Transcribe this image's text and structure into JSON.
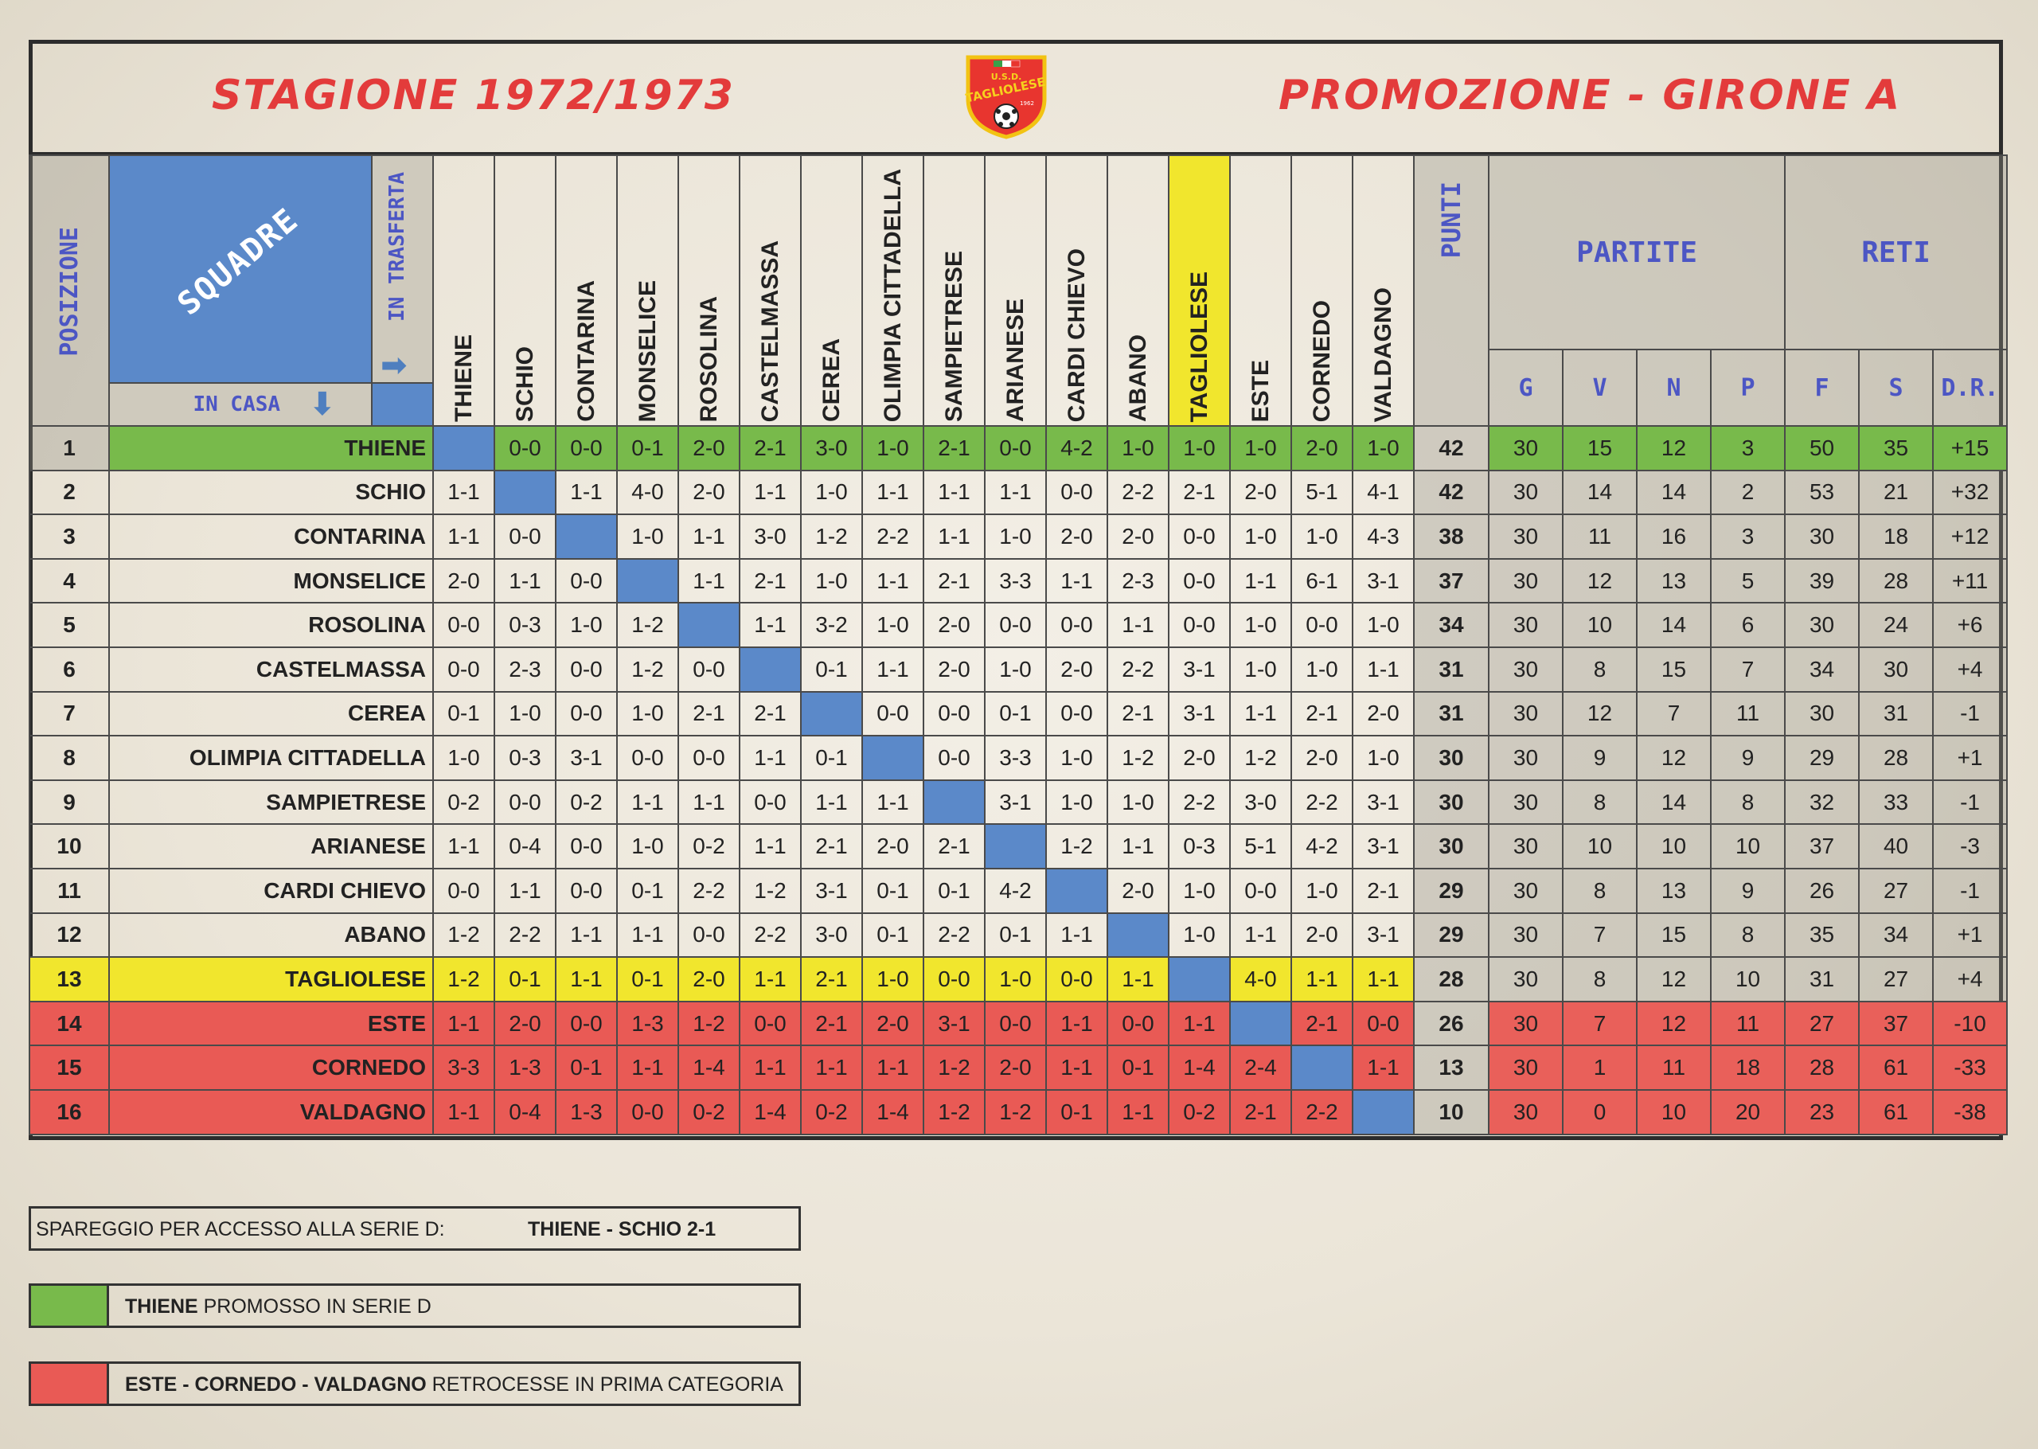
{
  "header": {
    "season": "STAGIONE 1972/1973",
    "league": "PROMOZIONE - GIRONE A",
    "logo_text": "U.S.D. TAGLIOLESE",
    "logo_year": "1962"
  },
  "labels": {
    "posizione": "POSIZIONE",
    "squadre": "SQUADRE",
    "in_casa": "IN CASA",
    "in_trasferta": "IN TRASFERTA",
    "punti": "PUNTI",
    "partite": "PARTITE",
    "reti": "RETI",
    "g": "G",
    "v": "V",
    "n": "N",
    "p": "P",
    "f": "F",
    "s": "S",
    "dr": "D.R."
  },
  "columns": [
    "THIENE",
    "SCHIO",
    "CONTARINA",
    "MONSELICE",
    "ROSOLINA",
    "CASTELMASSA",
    "CEREA",
    "OLIMPIA CITTADELLA",
    "SAMPIETRESE",
    "ARIANESE",
    "CARDI CHIEVO",
    "ABANO",
    "TAGLIOLESE",
    "ESTE",
    "CORNEDO",
    "VALDAGNO"
  ],
  "rows": [
    {
      "pos": "1",
      "team": "THIENE",
      "res": [
        "",
        "0-0",
        "0-0",
        "0-1",
        "2-0",
        "2-1",
        "3-0",
        "1-0",
        "2-1",
        "0-0",
        "4-2",
        "1-0",
        "1-0",
        "1-0",
        "2-0",
        "1-0"
      ],
      "pts": "42",
      "g": "30",
      "v": "15",
      "n": "12",
      "p": "3",
      "f": "50",
      "s": "35",
      "dr": "+15"
    },
    {
      "pos": "2",
      "team": "SCHIO",
      "res": [
        "1-1",
        "",
        "1-1",
        "4-0",
        "2-0",
        "1-1",
        "1-0",
        "1-1",
        "1-1",
        "1-1",
        "0-0",
        "2-2",
        "2-1",
        "2-0",
        "5-1",
        "4-1"
      ],
      "pts": "42",
      "g": "30",
      "v": "14",
      "n": "14",
      "p": "2",
      "f": "53",
      "s": "21",
      "dr": "+32"
    },
    {
      "pos": "3",
      "team": "CONTARINA",
      "res": [
        "1-1",
        "0-0",
        "",
        "1-0",
        "1-1",
        "3-0",
        "1-2",
        "2-2",
        "1-1",
        "1-0",
        "2-0",
        "2-0",
        "0-0",
        "1-0",
        "1-0",
        "4-3"
      ],
      "pts": "38",
      "g": "30",
      "v": "11",
      "n": "16",
      "p": "3",
      "f": "30",
      "s": "18",
      "dr": "+12"
    },
    {
      "pos": "4",
      "team": "MONSELICE",
      "res": [
        "2-0",
        "1-1",
        "0-0",
        "",
        "1-1",
        "2-1",
        "1-0",
        "1-1",
        "2-1",
        "3-3",
        "1-1",
        "2-3",
        "0-0",
        "1-1",
        "6-1",
        "3-1"
      ],
      "pts": "37",
      "g": "30",
      "v": "12",
      "n": "13",
      "p": "5",
      "f": "39",
      "s": "28",
      "dr": "+11"
    },
    {
      "pos": "5",
      "team": "ROSOLINA",
      "res": [
        "0-0",
        "0-3",
        "1-0",
        "1-2",
        "",
        "1-1",
        "3-2",
        "1-0",
        "2-0",
        "0-0",
        "0-0",
        "1-1",
        "0-0",
        "1-0",
        "0-0",
        "1-0"
      ],
      "pts": "34",
      "g": "30",
      "v": "10",
      "n": "14",
      "p": "6",
      "f": "30",
      "s": "24",
      "dr": "+6"
    },
    {
      "pos": "6",
      "team": "CASTELMASSA",
      "res": [
        "0-0",
        "2-3",
        "0-0",
        "1-2",
        "0-0",
        "",
        "0-1",
        "1-1",
        "2-0",
        "1-0",
        "2-0",
        "2-2",
        "3-1",
        "1-0",
        "1-0",
        "1-1"
      ],
      "pts": "31",
      "g": "30",
      "v": "8",
      "n": "15",
      "p": "7",
      "f": "34",
      "s": "30",
      "dr": "+4"
    },
    {
      "pos": "7",
      "team": "CEREA",
      "res": [
        "0-1",
        "1-0",
        "0-0",
        "1-0",
        "2-1",
        "2-1",
        "",
        "0-0",
        "0-0",
        "0-1",
        "0-0",
        "2-1",
        "3-1",
        "1-1",
        "2-1",
        "2-0"
      ],
      "pts": "31",
      "g": "30",
      "v": "12",
      "n": "7",
      "p": "11",
      "f": "30",
      "s": "31",
      "dr": "-1"
    },
    {
      "pos": "8",
      "team": "OLIMPIA CITTADELLA",
      "res": [
        "1-0",
        "0-3",
        "3-1",
        "0-0",
        "0-0",
        "1-1",
        "0-1",
        "",
        "0-0",
        "3-3",
        "1-0",
        "1-2",
        "2-0",
        "1-2",
        "2-0",
        "1-0"
      ],
      "pts": "30",
      "g": "30",
      "v": "9",
      "n": "12",
      "p": "9",
      "f": "29",
      "s": "28",
      "dr": "+1"
    },
    {
      "pos": "9",
      "team": "SAMPIETRESE",
      "res": [
        "0-2",
        "0-0",
        "0-2",
        "1-1",
        "1-1",
        "0-0",
        "1-1",
        "1-1",
        "",
        "3-1",
        "1-0",
        "1-0",
        "2-2",
        "3-0",
        "2-2",
        "3-1"
      ],
      "pts": "30",
      "g": "30",
      "v": "8",
      "n": "14",
      "p": "8",
      "f": "32",
      "s": "33",
      "dr": "-1"
    },
    {
      "pos": "10",
      "team": "ARIANESE",
      "res": [
        "1-1",
        "0-4",
        "0-0",
        "1-0",
        "0-2",
        "1-1",
        "2-1",
        "2-0",
        "2-1",
        "",
        "1-2",
        "1-1",
        "0-3",
        "5-1",
        "4-2",
        "3-1"
      ],
      "pts": "30",
      "g": "30",
      "v": "10",
      "n": "10",
      "p": "10",
      "f": "37",
      "s": "40",
      "dr": "-3"
    },
    {
      "pos": "11",
      "team": "CARDI CHIEVO",
      "res": [
        "0-0",
        "1-1",
        "0-0",
        "0-1",
        "2-2",
        "1-2",
        "3-1",
        "0-1",
        "0-1",
        "4-2",
        "",
        "2-0",
        "1-0",
        "0-0",
        "1-0",
        "2-1"
      ],
      "pts": "29",
      "g": "30",
      "v": "8",
      "n": "13",
      "p": "9",
      "f": "26",
      "s": "27",
      "dr": "-1"
    },
    {
      "pos": "12",
      "team": "ABANO",
      "res": [
        "1-2",
        "2-2",
        "1-1",
        "1-1",
        "0-0",
        "2-2",
        "3-0",
        "0-1",
        "2-2",
        "0-1",
        "1-1",
        "",
        "1-0",
        "1-1",
        "2-0",
        "3-1"
      ],
      "pts": "29",
      "g": "30",
      "v": "7",
      "n": "15",
      "p": "8",
      "f": "35",
      "s": "34",
      "dr": "+1"
    },
    {
      "pos": "13",
      "team": "TAGLIOLESE",
      "res": [
        "1-2",
        "0-1",
        "1-1",
        "0-1",
        "2-0",
        "1-1",
        "2-1",
        "1-0",
        "0-0",
        "1-0",
        "0-0",
        "1-1",
        "",
        "4-0",
        "1-1",
        "1-1"
      ],
      "pts": "28",
      "g": "30",
      "v": "8",
      "n": "12",
      "p": "10",
      "f": "31",
      "s": "27",
      "dr": "+4"
    },
    {
      "pos": "14",
      "team": "ESTE",
      "res": [
        "1-1",
        "2-0",
        "0-0",
        "1-3",
        "1-2",
        "0-0",
        "2-1",
        "2-0",
        "3-1",
        "0-0",
        "1-1",
        "0-0",
        "1-1",
        "",
        "2-1",
        "0-0"
      ],
      "pts": "26",
      "g": "30",
      "v": "7",
      "n": "12",
      "p": "11",
      "f": "27",
      "s": "37",
      "dr": "-10"
    },
    {
      "pos": "15",
      "team": "CORNEDO",
      "res": [
        "3-3",
        "1-3",
        "0-1",
        "1-1",
        "1-4",
        "1-1",
        "1-1",
        "1-1",
        "1-2",
        "2-0",
        "1-1",
        "0-1",
        "1-4",
        "2-4",
        "",
        "1-1"
      ],
      "pts": "13",
      "g": "30",
      "v": "1",
      "n": "11",
      "p": "18",
      "f": "28",
      "s": "61",
      "dr": "-33"
    },
    {
      "pos": "16",
      "team": "VALDAGNO",
      "res": [
        "1-1",
        "0-4",
        "1-3",
        "0-0",
        "0-2",
        "1-4",
        "0-2",
        "1-4",
        "1-2",
        "1-2",
        "0-1",
        "1-1",
        "0-2",
        "2-1",
        "2-2",
        ""
      ],
      "pts": "10",
      "g": "30",
      "v": "0",
      "n": "10",
      "p": "20",
      "f": "23",
      "s": "61",
      "dr": "-38"
    }
  ],
  "colors": {
    "promoted": "#78ba4b",
    "highlight": "#f1e62d",
    "relegated": "#e95a55",
    "diagonal": "#5b89c9",
    "accent_blue": "#4c56c4",
    "title_red": "#e33b3b"
  },
  "legend": {
    "playoff_label": "SPAREGGIO PER ACCESSO ALLA SERIE D:",
    "playoff_result": "THIENE - SCHIO  2-1",
    "promoted_bold": "THIENE",
    "promoted_text": " PROMOSSO IN SERIE D",
    "relegated_bold": "ESTE - CORNEDO - VALDAGNO",
    "relegated_text": " RETROCESSE IN PRIMA CATEGORIA"
  }
}
